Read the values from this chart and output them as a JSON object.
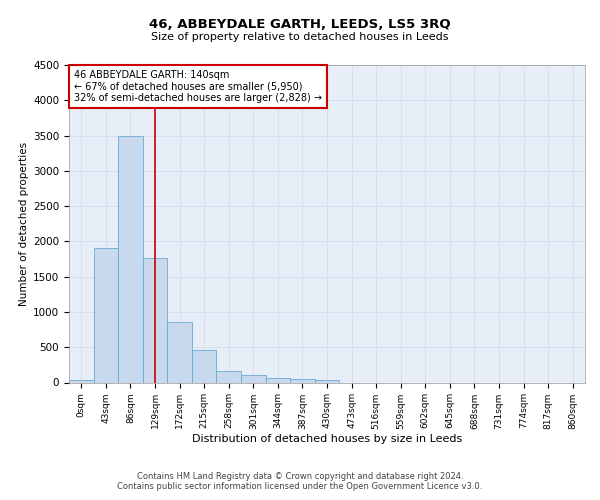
{
  "title": "46, ABBEYDALE GARTH, LEEDS, LS5 3RQ",
  "subtitle": "Size of property relative to detached houses in Leeds",
  "xlabel": "Distribution of detached houses by size in Leeds",
  "ylabel": "Number of detached properties",
  "bar_color": "#c8d9ee",
  "bar_edge_color": "#6aaad4",
  "background_color": "#e8eef8",
  "grid_color": "#d0d8e8",
  "annotation_box_color": "#cc0000",
  "vline_color": "#cc0000",
  "vline_position": 3.0,
  "annotation_title": "46 ABBEYDALE GARTH: 140sqm",
  "annotation_line2": "← 67% of detached houses are smaller (5,950)",
  "annotation_line3": "32% of semi-detached houses are larger (2,828) →",
  "tick_labels": [
    "0sqm",
    "43sqm",
    "86sqm",
    "129sqm",
    "172sqm",
    "215sqm",
    "258sqm",
    "301sqm",
    "344sqm",
    "387sqm",
    "430sqm",
    "473sqm",
    "516sqm",
    "559sqm",
    "602sqm",
    "645sqm",
    "688sqm",
    "731sqm",
    "774sqm",
    "817sqm",
    "860sqm"
  ],
  "bar_values": [
    40,
    1900,
    3490,
    1760,
    855,
    460,
    160,
    100,
    70,
    55,
    40,
    0,
    0,
    0,
    0,
    0,
    0,
    0,
    0,
    0,
    0
  ],
  "ylim": [
    0,
    4500
  ],
  "yticks": [
    0,
    500,
    1000,
    1500,
    2000,
    2500,
    3000,
    3500,
    4000,
    4500
  ],
  "footer_line1": "Contains HM Land Registry data © Crown copyright and database right 2024.",
  "footer_line2": "Contains public sector information licensed under the Open Government Licence v3.0."
}
